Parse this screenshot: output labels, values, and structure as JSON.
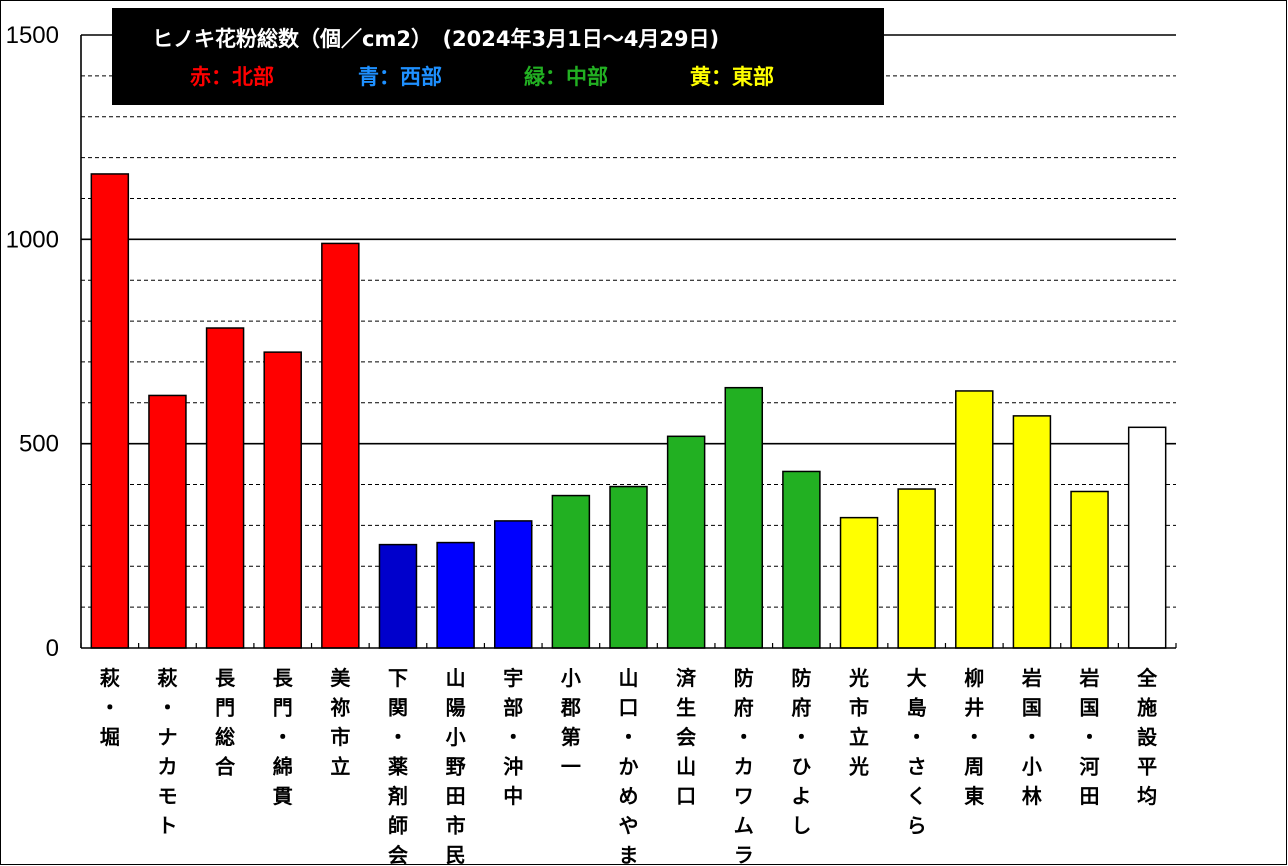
{
  "chart_data": {
    "type": "bar",
    "title": "ヒノキ花粉総数（個／cm2）　(2024年3月1日～4月29日)",
    "legend": [
      {
        "label": "赤：北部",
        "color": "#ff0000"
      },
      {
        "label": "青：西部",
        "color": "#1e90ff"
      },
      {
        "label": "緑：中部",
        "color": "#22b022"
      },
      {
        "label": "黄：東部",
        "color": "#ffff00"
      }
    ],
    "legend_background": "#000000",
    "legend_placement": "top-left",
    "ylim": [
      0,
      1500
    ],
    "yticks": [
      "0",
      "500",
      "1000",
      "1500"
    ],
    "major_step": 500,
    "minor_step": 100,
    "grid": true,
    "categories": [
      "萩・堀",
      "萩・ナカモト",
      "長門総合",
      "長門・綿貫",
      "美祢市立",
      "下関・薬剤師会",
      "山陽小野田市民",
      "宇部・沖中",
      "小郡第一",
      "山口・かめやま",
      "済生会山口",
      "防府・カワムラ",
      "防府・ひよし",
      "光市立光",
      "大島・さくら",
      "柳井・周東",
      "岩国・小林",
      "岩国・河田",
      "全施設平均"
    ],
    "values": [
      1160,
      618,
      783,
      724,
      990,
      253,
      258,
      311,
      373,
      395,
      518,
      637,
      432,
      319,
      389,
      629,
      568,
      383,
      540
    ],
    "bar_colors": [
      "#ff0000",
      "#ff0000",
      "#ff0000",
      "#ff0000",
      "#ff0000",
      "#0000cc",
      "#0000ff",
      "#0000ff",
      "#22b022",
      "#22b022",
      "#22b022",
      "#22b022",
      "#22b022",
      "#ffff00",
      "#ffff00",
      "#ffff00",
      "#ffff00",
      "#ffff00",
      "#ffffff"
    ]
  }
}
